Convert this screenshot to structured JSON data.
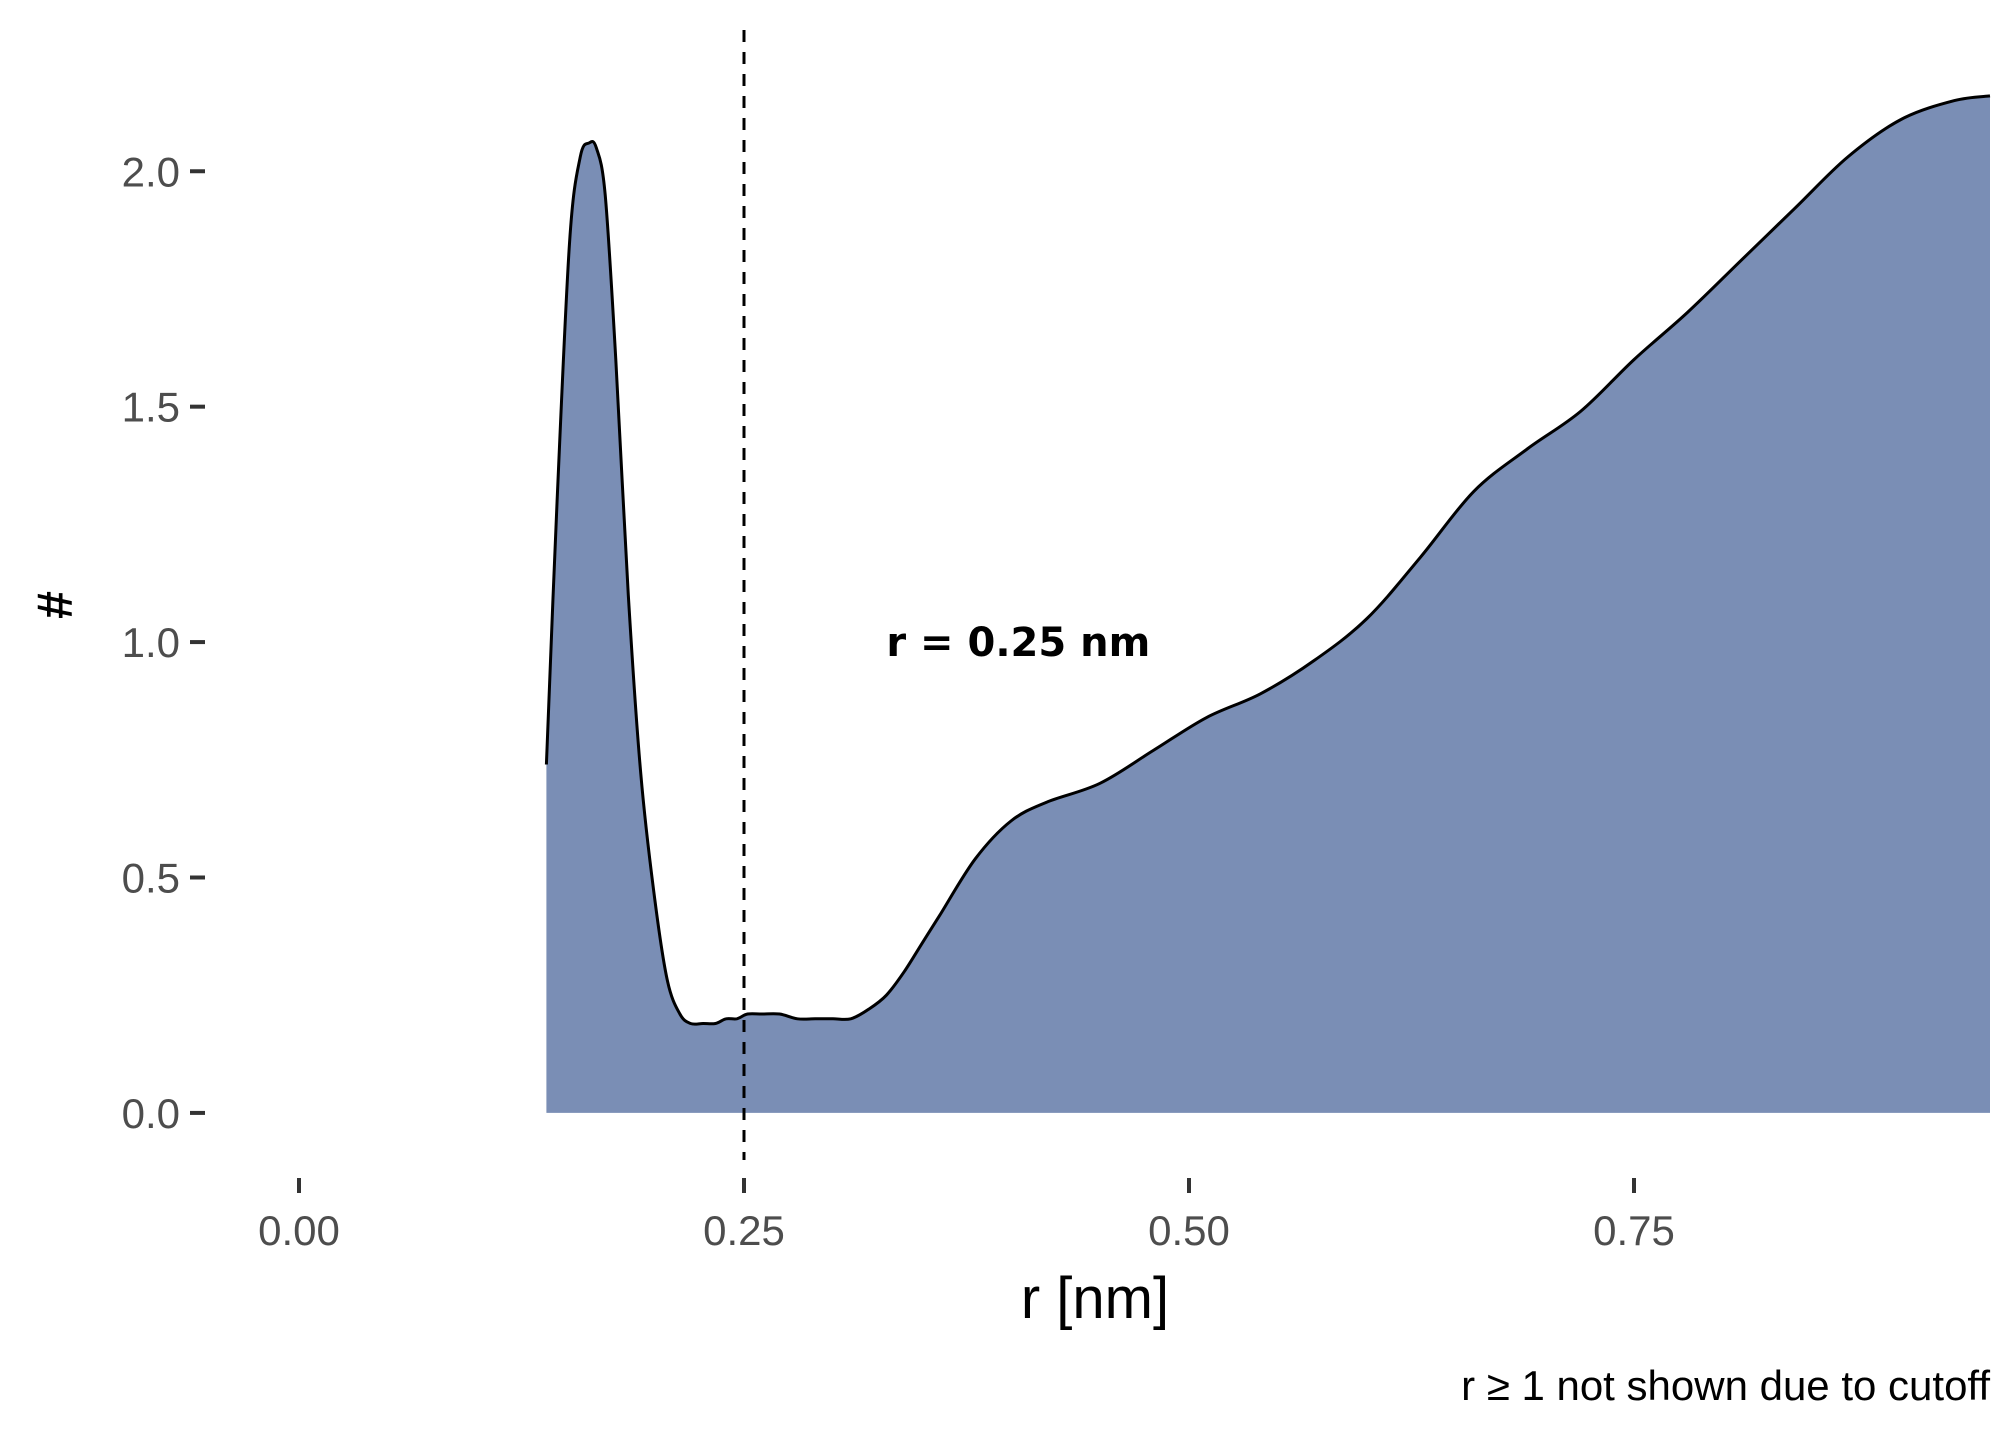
{
  "chart_data": {
    "type": "area",
    "title": "",
    "xlabel": "r [nm]",
    "ylabel": "#",
    "caption": "r ≥ 1 not shown due to cutoff",
    "xlim": [
      -0.05,
      0.95
    ],
    "ylim": [
      -0.1,
      2.3
    ],
    "x_ticks": [
      0.0,
      0.25,
      0.5,
      0.75
    ],
    "x_tick_labels": [
      "0.00",
      "0.25",
      "0.50",
      "0.75"
    ],
    "y_ticks": [
      0.0,
      0.5,
      1.0,
      1.5,
      2.0
    ],
    "y_tick_labels": [
      "0.0",
      "0.5",
      "1.0",
      "1.5",
      "2.0"
    ],
    "grid": false,
    "fill_color": "#7a8eb5",
    "line_color": "#000000",
    "vline": {
      "x": 0.25,
      "style": "dashed"
    },
    "annotation": {
      "text": "r = 0.25 nm",
      "x": 0.33,
      "y": 1.0
    },
    "series": [
      {
        "x": [
          0.139,
          0.145,
          0.152,
          0.158,
          0.163,
          0.167,
          0.172,
          0.178,
          0.185,
          0.192,
          0.2,
          0.207,
          0.214,
          0.22,
          0.227,
          0.234,
          0.24,
          0.246,
          0.252,
          0.26,
          0.27,
          0.28,
          0.29,
          0.3,
          0.31,
          0.32,
          0.33,
          0.34,
          0.35,
          0.36,
          0.38,
          0.4,
          0.42,
          0.45,
          0.48,
          0.51,
          0.54,
          0.57,
          0.6,
          0.63,
          0.66,
          0.69,
          0.72,
          0.75,
          0.78,
          0.81,
          0.84,
          0.87,
          0.9,
          0.93,
          0.95
        ],
        "y": [
          0.74,
          1.3,
          1.85,
          2.03,
          2.06,
          2.05,
          1.95,
          1.6,
          1.1,
          0.72,
          0.45,
          0.28,
          0.21,
          0.19,
          0.19,
          0.19,
          0.2,
          0.2,
          0.21,
          0.21,
          0.21,
          0.2,
          0.2,
          0.2,
          0.2,
          0.22,
          0.25,
          0.3,
          0.36,
          0.42,
          0.54,
          0.62,
          0.66,
          0.7,
          0.77,
          0.84,
          0.89,
          0.96,
          1.05,
          1.18,
          1.32,
          1.41,
          1.49,
          1.6,
          1.7,
          1.81,
          1.92,
          2.03,
          2.11,
          2.15,
          2.16
        ]
      }
    ]
  }
}
